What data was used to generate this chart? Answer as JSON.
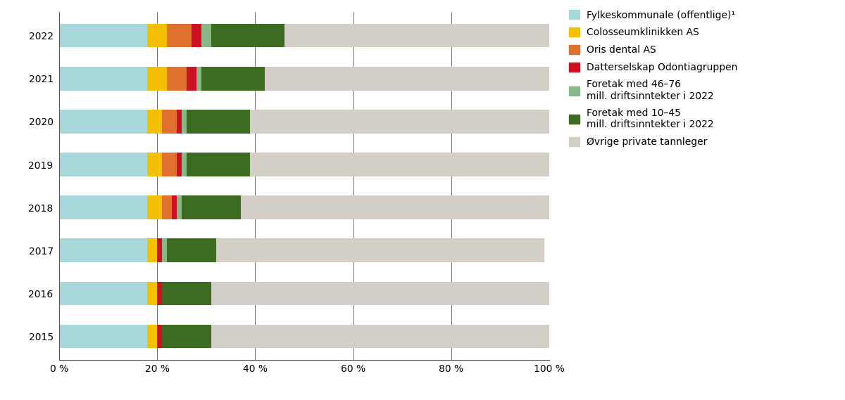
{
  "years": [
    "2015",
    "2016",
    "2017",
    "2018",
    "2019",
    "2020",
    "2021",
    "2022"
  ],
  "segments": {
    "Fylkeskommunale (offentlige)¹": {
      "values": [
        18,
        18,
        18,
        18,
        18,
        18,
        18,
        18
      ],
      "color": "#a8d8dc"
    },
    "Colosseumklinikken AS": {
      "values": [
        2,
        2,
        2,
        3,
        3,
        3,
        4,
        4
      ],
      "color": "#f5c000"
    },
    "Oris dental AS": {
      "values": [
        0,
        0,
        0,
        2,
        3,
        3,
        4,
        5
      ],
      "color": "#e07030"
    },
    "Datterselskap Odontiagruppen": {
      "values": [
        1,
        1,
        1,
        1,
        1,
        1,
        2,
        2
      ],
      "color": "#cc1122"
    },
    "Foretak med 46–76 mill. driftsinntekter i 2022": {
      "values": [
        0,
        0,
        1,
        1,
        1,
        1,
        1,
        2
      ],
      "color": "#88b888"
    },
    "Foretak med 10–45 mill. driftsinntekter i 2022": {
      "values": [
        10,
        10,
        10,
        12,
        13,
        13,
        13,
        15
      ],
      "color": "#3d6b21"
    },
    "Øvrige private tannleger": {
      "values": [
        69,
        69,
        67,
        63,
        61,
        61,
        58,
        54
      ],
      "color": "#d4cfc6"
    }
  },
  "xlim": [
    0,
    100
  ],
  "xticks": [
    0,
    20,
    40,
    60,
    80,
    100
  ],
  "xticklabels": [
    "0 %",
    "20 %",
    "40 %",
    "60 %",
    "80 %",
    "100 %"
  ],
  "bar_height": 0.55,
  "background_color": "#ffffff",
  "legend_labels_order": [
    "Fylkeskommunale (offentlige)¹",
    "Colosseumklinikken AS",
    "Oris dental AS",
    "Datterselskap Odontiagruppen",
    "Foretak med 46–76 mill. driftsinntekter i 2022",
    "Foretak med 10–45 mill. driftsinntekter i 2022",
    "Øvrige private tannleger"
  ],
  "legend_labels_display": [
    "Fylkeskommunale (offentlige)¹",
    "Colosseumklinikken AS",
    "Oris dental AS",
    "Datterselskap Odontiagruppen",
    "Foretak med 46–76\nmill. driftsinntekter i 2022",
    "Foretak med 10–45\nmill. driftsinntekter i 2022",
    "Øvrige private tannleger"
  ],
  "gridline_color": "#555555",
  "tick_fontsize": 10,
  "legend_fontsize": 10
}
